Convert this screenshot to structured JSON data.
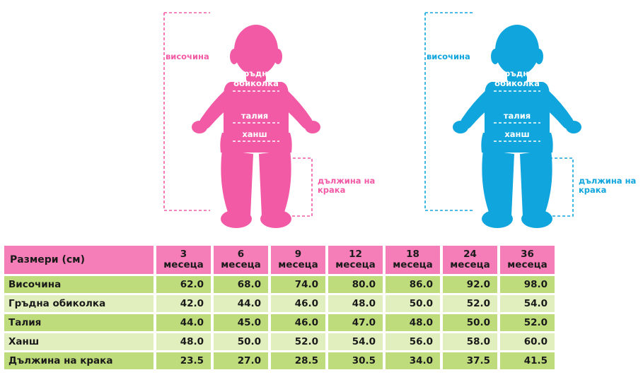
{
  "figures": [
    {
      "id": "girl",
      "color": "#f35aa6",
      "height_label": "височина",
      "chest_label_line1": "гръдна",
      "chest_label_line2": "обиколка",
      "waist_label": "талия",
      "hip_label": "ханш",
      "leg_label_line1": "дължина на",
      "leg_label_line2": "крака"
    },
    {
      "id": "boy",
      "color": "#10a6dd",
      "height_label": "височина",
      "chest_label_line1": "гръдна",
      "chest_label_line2": "обиколка",
      "waist_label": "талия",
      "hip_label": "ханш",
      "leg_label_line1": "дължина на",
      "leg_label_line2": "крака"
    }
  ],
  "table": {
    "header_label": "Размери (см)",
    "header_color": "#f57db8",
    "row_dark_color": "#bfdc7d",
    "row_light_color": "#e0efbd",
    "ages": [
      {
        "num": "3",
        "unit": "месеца"
      },
      {
        "num": "6",
        "unit": "месеца"
      },
      {
        "num": "9",
        "unit": "месеца"
      },
      {
        "num": "12",
        "unit": "месеца"
      },
      {
        "num": "18",
        "unit": "месеца"
      },
      {
        "num": "24",
        "unit": "месеца"
      },
      {
        "num": "36",
        "unit": "месеца"
      }
    ],
    "rows": [
      {
        "label": "Височина",
        "values": [
          "62.0",
          "68.0",
          "74.0",
          "80.0",
          "86.0",
          "92.0",
          "98.0"
        ]
      },
      {
        "label": "Гръдна обиколка",
        "values": [
          "42.0",
          "44.0",
          "46.0",
          "48.0",
          "50.0",
          "52.0",
          "54.0"
        ]
      },
      {
        "label": "Талия",
        "values": [
          "44.0",
          "45.0",
          "46.0",
          "47.0",
          "48.0",
          "50.0",
          "52.0"
        ]
      },
      {
        "label": "Ханш",
        "values": [
          "48.0",
          "50.0",
          "52.0",
          "54.0",
          "56.0",
          "58.0",
          "60.0"
        ]
      },
      {
        "label": "Дължина на крака",
        "values": [
          "23.5",
          "27.0",
          "28.5",
          "30.5",
          "34.0",
          "37.5",
          "41.5"
        ]
      }
    ]
  }
}
